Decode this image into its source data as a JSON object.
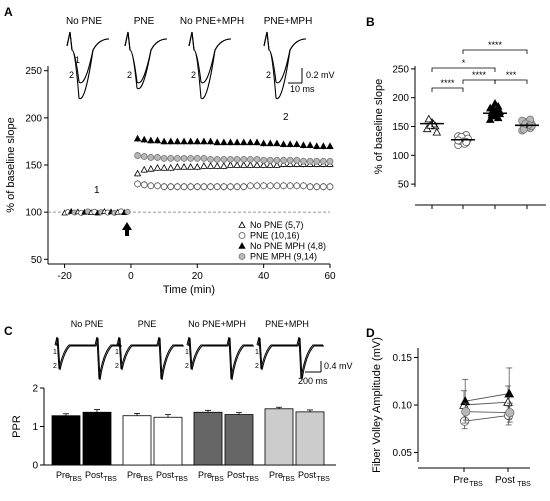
{
  "panels": {
    "A": {
      "letter": "A",
      "trace_labels": [
        "No PNE",
        "PNE",
        "No PNE+MPH",
        "PNE+MPH"
      ],
      "scalebar": {
        "v": "0.2 mV",
        "t": "10 ms"
      },
      "annot": {
        "one": "1",
        "two": "2"
      },
      "legend": [
        "No PNE (5,7)",
        "PNE (10,16)",
        "No PNE MPH (4,8)",
        "PNE MPH (9,14)"
      ]
    },
    "B": {
      "letter": "B"
    },
    "C": {
      "letter": "C",
      "trace_labels": [
        "No PNE",
        "PNE",
        "No PNE+MPH",
        "PNE+MPH"
      ],
      "scalebar": {
        "v": "0.4 mV",
        "t": "200 ms"
      }
    },
    "D": {
      "letter": "D"
    }
  },
  "chart_data": [
    {
      "id": "A",
      "type": "scatter",
      "xlabel": "Time (min)",
      "ylabel": "% of baseline slope",
      "xlim": [
        -25,
        60
      ],
      "ylim": [
        45,
        255
      ],
      "xticks": [
        -20,
        0,
        20,
        40,
        60
      ],
      "yticks": [
        50,
        100,
        150,
        200,
        250
      ],
      "baseline": 100,
      "annotations": [
        "1",
        "2"
      ],
      "series": [
        {
          "name": "No PNE (5,7)",
          "marker": "triangle-open",
          "values": [
            141,
            145,
            146,
            147,
            147,
            147,
            148,
            148,
            148,
            148,
            149,
            149,
            149,
            149,
            150,
            150,
            150,
            150,
            150,
            150,
            150,
            150,
            151,
            151,
            151,
            151,
            151,
            151,
            151,
            151
          ]
        },
        {
          "name": "PNE (10,16)",
          "marker": "circle-open",
          "values": [
            130,
            129,
            128,
            128,
            127,
            127,
            127,
            127,
            127,
            127,
            127,
            127,
            127,
            127,
            127,
            127,
            127,
            128,
            128,
            128,
            128,
            128,
            128,
            128,
            128,
            128,
            127,
            127,
            127,
            127
          ]
        },
        {
          "name": "No PNE MPH (4,8)",
          "marker": "triangle-filled",
          "values": [
            178,
            177,
            176,
            176,
            175,
            175,
            175,
            175,
            175,
            175,
            175,
            175,
            174,
            174,
            174,
            174,
            174,
            174,
            174,
            173,
            173,
            173,
            172,
            172,
            172,
            171,
            171,
            170,
            170,
            170
          ]
        },
        {
          "name": "PNE MPH (9,14)",
          "marker": "circle-gray",
          "values": [
            160,
            159,
            158,
            158,
            157,
            157,
            157,
            157,
            157,
            157,
            157,
            156,
            156,
            156,
            156,
            156,
            156,
            156,
            156,
            155,
            155,
            155,
            155,
            155,
            155,
            154,
            154,
            154,
            154,
            154
          ]
        }
      ]
    },
    {
      "id": "B",
      "type": "scatter",
      "ylabel": "% of baseline slope",
      "ylim": [
        45,
        255
      ],
      "yticks": [
        50,
        100,
        150,
        200,
        250
      ],
      "groups": [
        "No PNE",
        "PNE",
        "No PNE MPH",
        "PNE MPH"
      ],
      "means": [
        155,
        127,
        173,
        152
      ],
      "sem": [
        6,
        4,
        5,
        5
      ],
      "points": [
        [
          146,
          151,
          157,
          163,
          140,
          154,
          152
        ],
        [
          118,
          122,
          124,
          126,
          128,
          130,
          131,
          133,
          135,
          127,
          125,
          129,
          120,
          132,
          126,
          123
        ],
        [
          162,
          165,
          168,
          170,
          172,
          175,
          178,
          182,
          185,
          190,
          174,
          176,
          169,
          180
        ],
        [
          143,
          147,
          150,
          152,
          154,
          156,
          158,
          160,
          162,
          149,
          145,
          151,
          153,
          155
        ]
      ],
      "significance": [
        "****",
        "*",
        "****",
        "****",
        "***"
      ]
    },
    {
      "id": "C",
      "type": "bar",
      "ylabel": "PPR",
      "ylim": [
        0,
        2
      ],
      "yticks": [
        0,
        1,
        2
      ],
      "categories": [
        "Pre",
        "Post"
      ],
      "subscript": "TBS",
      "series": [
        {
          "name": "No PNE",
          "values": [
            1.28,
            1.37
          ],
          "err": [
            0.05,
            0.07
          ]
        },
        {
          "name": "PNE",
          "values": [
            1.28,
            1.24
          ],
          "err": [
            0.06,
            0.07
          ]
        },
        {
          "name": "No PNE+MPH",
          "values": [
            1.37,
            1.31
          ],
          "err": [
            0.05,
            0.05
          ]
        },
        {
          "name": "PNE+MPH",
          "values": [
            1.46,
            1.38
          ],
          "err": [
            0.04,
            0.05
          ]
        }
      ]
    },
    {
      "id": "D",
      "type": "line",
      "ylabel": "Fiber Volley Amplitude (mV)",
      "ylim": [
        0.04,
        0.16
      ],
      "yticks": [
        0.05,
        0.1,
        0.15
      ],
      "categories": [
        "Pre",
        "Post"
      ],
      "subscript": "TBS",
      "series": [
        {
          "name": "No PNE",
          "marker": "triangle-open",
          "values": [
            0.1,
            0.103
          ],
          "err": [
            0.015,
            0.017
          ]
        },
        {
          "name": "PNE",
          "marker": "circle-open",
          "values": [
            0.083,
            0.089
          ],
          "err": [
            0.008,
            0.01
          ]
        },
        {
          "name": "No PNE MPH",
          "marker": "triangle-filled",
          "values": [
            0.104,
            0.112
          ],
          "err": [
            0.023,
            0.027
          ]
        },
        {
          "name": "PNE MPH",
          "marker": "circle-gray",
          "values": [
            0.093,
            0.092
          ],
          "err": [
            0.009,
            0.01
          ]
        }
      ]
    }
  ]
}
